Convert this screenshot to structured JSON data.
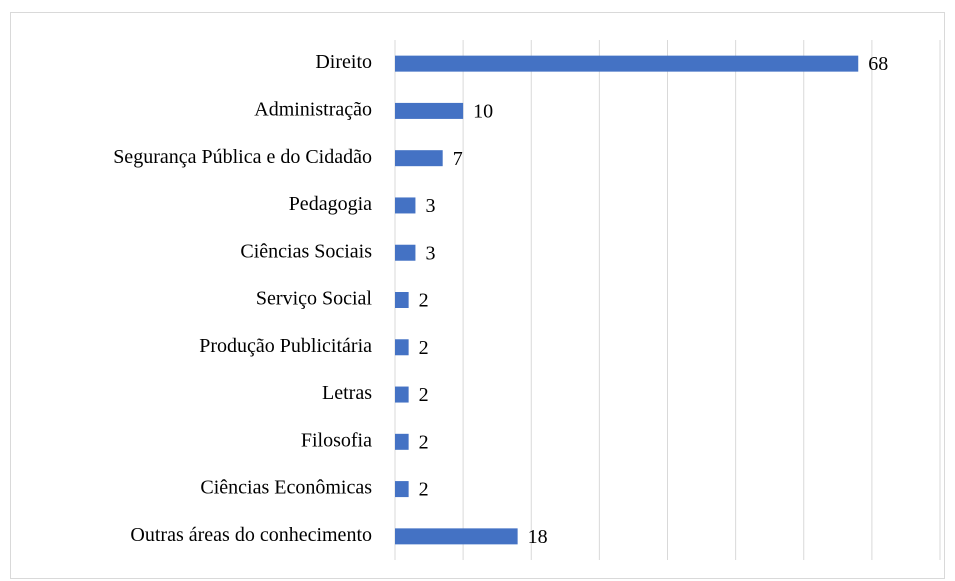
{
  "chart_data": {
    "type": "barh",
    "categories": [
      "Direito",
      "Administração",
      "Segurança Pública e do Cidadão",
      "Pedagogia",
      "Ciências Sociais",
      "Serviço Social",
      "Produção Publicitária",
      "Letras",
      "Filosofia",
      "Ciências Econômicas",
      "Outras áreas do conhecimento"
    ],
    "values": [
      68,
      10,
      7,
      3,
      3,
      2,
      2,
      2,
      2,
      2,
      18
    ],
    "color": "#4472c4",
    "xlim": [
      0,
      80
    ],
    "xticks": [
      0,
      10,
      20,
      30,
      40,
      50,
      60,
      70,
      80
    ],
    "grid": true
  }
}
